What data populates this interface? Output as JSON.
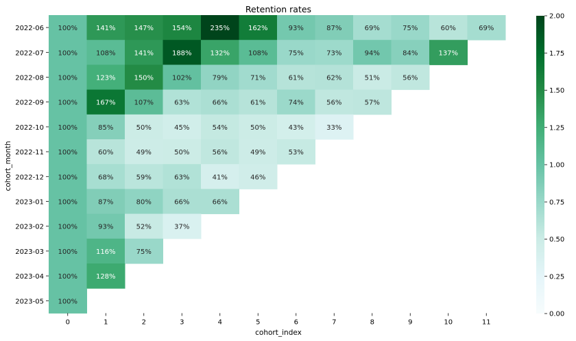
{
  "chart_data": {
    "type": "heatmap",
    "title": "Retention rates",
    "xlabel": "cohort_index",
    "ylabel": "cohort_month",
    "x_categories": [
      "0",
      "1",
      "2",
      "3",
      "4",
      "5",
      "6",
      "7",
      "8",
      "9",
      "10",
      "11"
    ],
    "y_categories": [
      "2022-06",
      "2022-07",
      "2022-08",
      "2022-09",
      "2022-10",
      "2022-11",
      "2022-12",
      "2023-01",
      "2023-02",
      "2023-03",
      "2023-04",
      "2023-05"
    ],
    "values": [
      [
        1.0,
        1.41,
        1.47,
        1.54,
        2.35,
        1.62,
        0.93,
        0.87,
        0.69,
        0.75,
        0.6,
        0.69
      ],
      [
        1.0,
        1.08,
        1.41,
        1.88,
        1.32,
        1.08,
        0.75,
        0.73,
        0.94,
        0.84,
        1.37,
        null
      ],
      [
        1.0,
        1.23,
        1.5,
        1.02,
        0.79,
        0.71,
        0.61,
        0.62,
        0.51,
        0.56,
        null,
        null
      ],
      [
        1.0,
        1.67,
        1.07,
        0.63,
        0.66,
        0.61,
        0.74,
        0.56,
        0.57,
        null,
        null,
        null
      ],
      [
        1.0,
        0.85,
        0.5,
        0.45,
        0.54,
        0.5,
        0.43,
        0.33,
        null,
        null,
        null,
        null
      ],
      [
        1.0,
        0.6,
        0.49,
        0.5,
        0.56,
        0.49,
        0.53,
        null,
        null,
        null,
        null,
        null
      ],
      [
        1.0,
        0.68,
        0.59,
        0.63,
        0.41,
        0.46,
        null,
        null,
        null,
        null,
        null,
        null
      ],
      [
        1.0,
        0.87,
        0.8,
        0.66,
        0.66,
        null,
        null,
        null,
        null,
        null,
        null,
        null
      ],
      [
        1.0,
        0.93,
        0.52,
        0.37,
        null,
        null,
        null,
        null,
        null,
        null,
        null,
        null
      ],
      [
        1.0,
        1.16,
        0.75,
        null,
        null,
        null,
        null,
        null,
        null,
        null,
        null,
        null
      ],
      [
        1.0,
        1.28,
        null,
        null,
        null,
        null,
        null,
        null,
        null,
        null,
        null,
        null
      ],
      [
        1.0,
        null,
        null,
        null,
        null,
        null,
        null,
        null,
        null,
        null,
        null,
        null
      ]
    ],
    "cell_labels": [
      [
        "100%",
        "141%",
        "147%",
        "154%",
        "235%",
        "162%",
        "93%",
        "87%",
        "69%",
        "75%",
        "60%",
        "69%"
      ],
      [
        "100%",
        "108%",
        "141%",
        "188%",
        "132%",
        "108%",
        "75%",
        "73%",
        "94%",
        "84%",
        "137%",
        ""
      ],
      [
        "100%",
        "123%",
        "150%",
        "102%",
        "79%",
        "71%",
        "61%",
        "62%",
        "51%",
        "56%",
        "",
        ""
      ],
      [
        "100%",
        "167%",
        "107%",
        "63%",
        "66%",
        "61%",
        "74%",
        "56%",
        "57%",
        "",
        "",
        ""
      ],
      [
        "100%",
        "85%",
        "50%",
        "45%",
        "54%",
        "50%",
        "43%",
        "33%",
        "",
        "",
        "",
        ""
      ],
      [
        "100%",
        "60%",
        "49%",
        "50%",
        "56%",
        "49%",
        "53%",
        "",
        "",
        "",
        "",
        ""
      ],
      [
        "100%",
        "68%",
        "59%",
        "63%",
        "41%",
        "46%",
        "",
        "",
        "",
        "",
        "",
        ""
      ],
      [
        "100%",
        "87%",
        "80%",
        "66%",
        "66%",
        "",
        "",
        "",
        "",
        "",
        "",
        ""
      ],
      [
        "100%",
        "93%",
        "52%",
        "37%",
        "",
        "",
        "",
        "",
        "",
        "",
        "",
        ""
      ],
      [
        "100%",
        "116%",
        "75%",
        "",
        "",
        "",
        "",
        "",
        "",
        "",
        "",
        ""
      ],
      [
        "100%",
        "128%",
        "",
        "",
        "",
        "",
        "",
        "",
        "",
        "",
        "",
        ""
      ],
      [
        "100%",
        "",
        "",
        "",
        "",
        "",
        "",
        "",
        "",
        "",
        "",
        ""
      ]
    ],
    "colorscale": "BuGn",
    "vmin": 0,
    "vmax": 2,
    "colorbar_ticks": [
      "0.00",
      "0.25",
      "0.50",
      "0.75",
      "1.00",
      "1.25",
      "1.50",
      "1.75",
      "2.00"
    ],
    "colorbar_tick_values": [
      0,
      0.25,
      0.5,
      0.75,
      1,
      1.25,
      1.5,
      1.75,
      2
    ],
    "grid": false,
    "legend": "colorbar-right"
  }
}
